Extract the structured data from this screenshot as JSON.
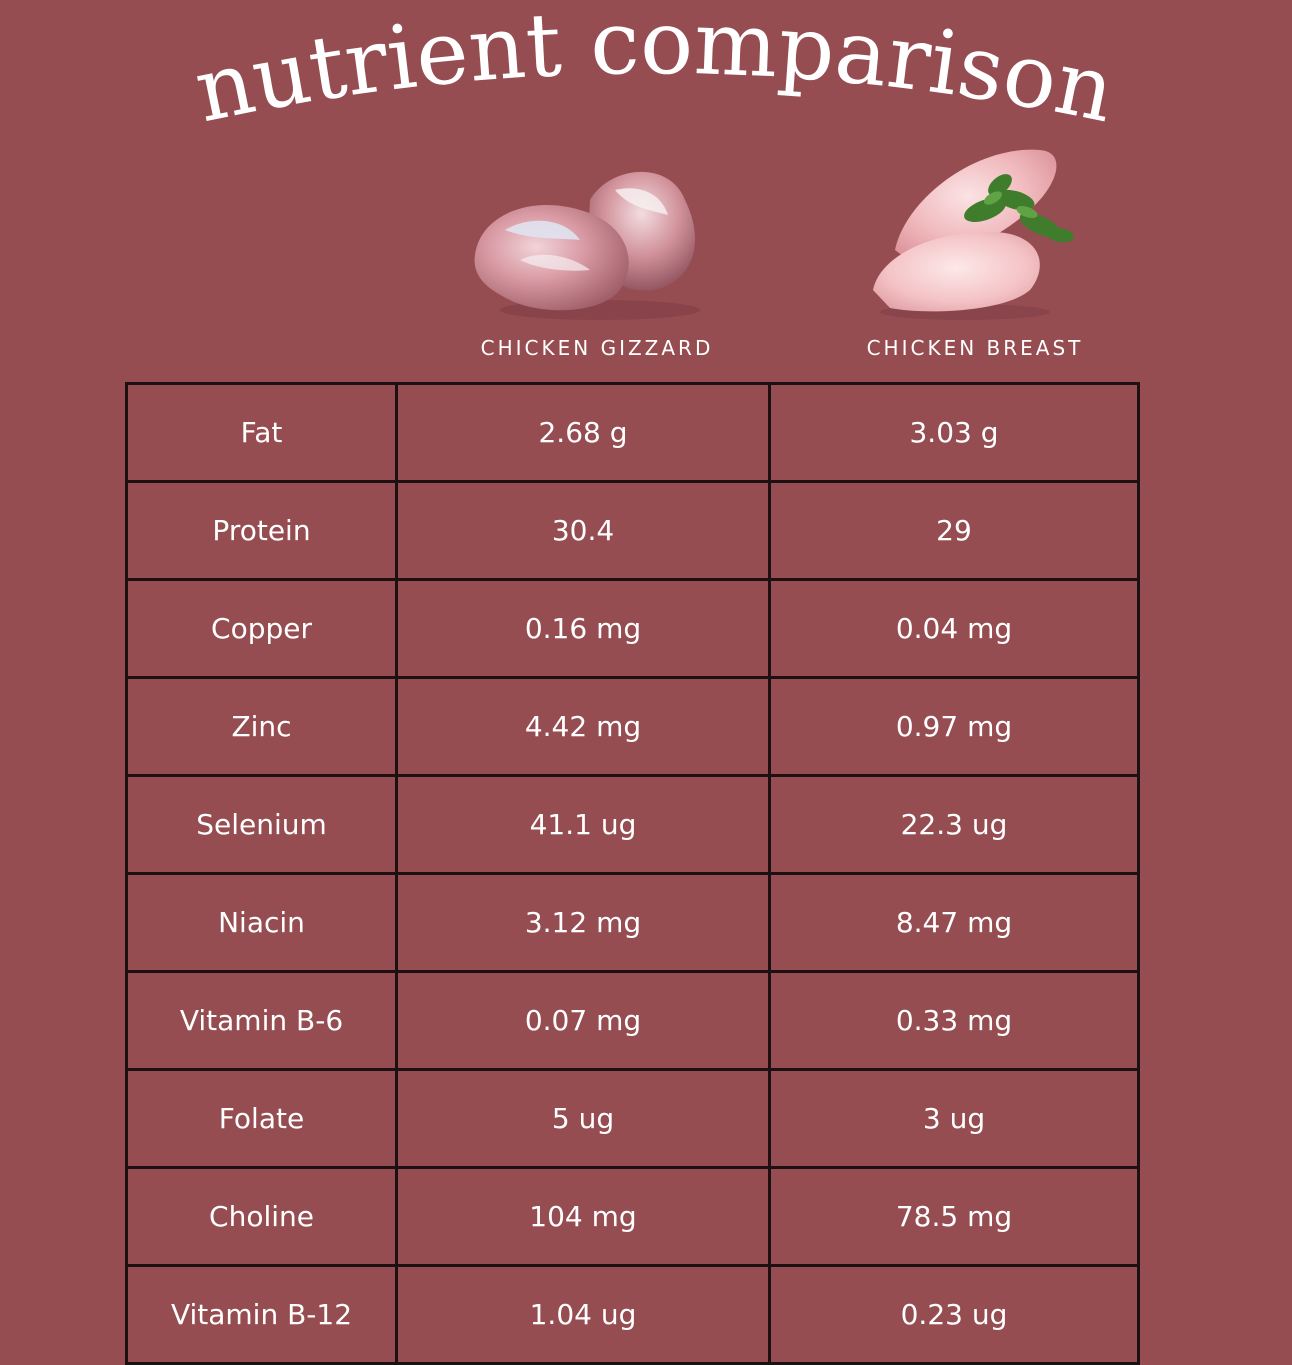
{
  "title": "nutrient comparison",
  "columns": [
    {
      "label": "CHICKEN GIZZARD",
      "image": "chicken-gizzard-photo"
    },
    {
      "label": "CHICKEN BREAST",
      "image": "chicken-breast-photo"
    }
  ],
  "rows": [
    {
      "nutrient": "Fat",
      "gizzard": "2.68 g",
      "breast": "3.03 g"
    },
    {
      "nutrient": "Protein",
      "gizzard": "30.4",
      "breast": "29"
    },
    {
      "nutrient": "Copper",
      "gizzard": "0.16 mg",
      "breast": "0.04 mg"
    },
    {
      "nutrient": "Zinc",
      "gizzard": "4.42 mg",
      "breast": "0.97 mg"
    },
    {
      "nutrient": "Selenium",
      "gizzard": "41.1 ug",
      "breast": "22.3 ug"
    },
    {
      "nutrient": "Niacin",
      "gizzard": "3.12 mg",
      "breast": "8.47 mg"
    },
    {
      "nutrient": "Vitamin B-6",
      "gizzard": "0.07 mg",
      "breast": "0.33 mg"
    },
    {
      "nutrient": "Folate",
      "gizzard": "5 ug",
      "breast": "3 ug"
    },
    {
      "nutrient": "Choline",
      "gizzard": "104 mg",
      "breast": "78.5 mg"
    },
    {
      "nutrient": "Vitamin B-12",
      "gizzard": "1.04 ug",
      "breast": "0.23 ug"
    }
  ],
  "colors": {
    "background": "#964d52",
    "text": "#ffffff",
    "grid": "#1c1012"
  }
}
